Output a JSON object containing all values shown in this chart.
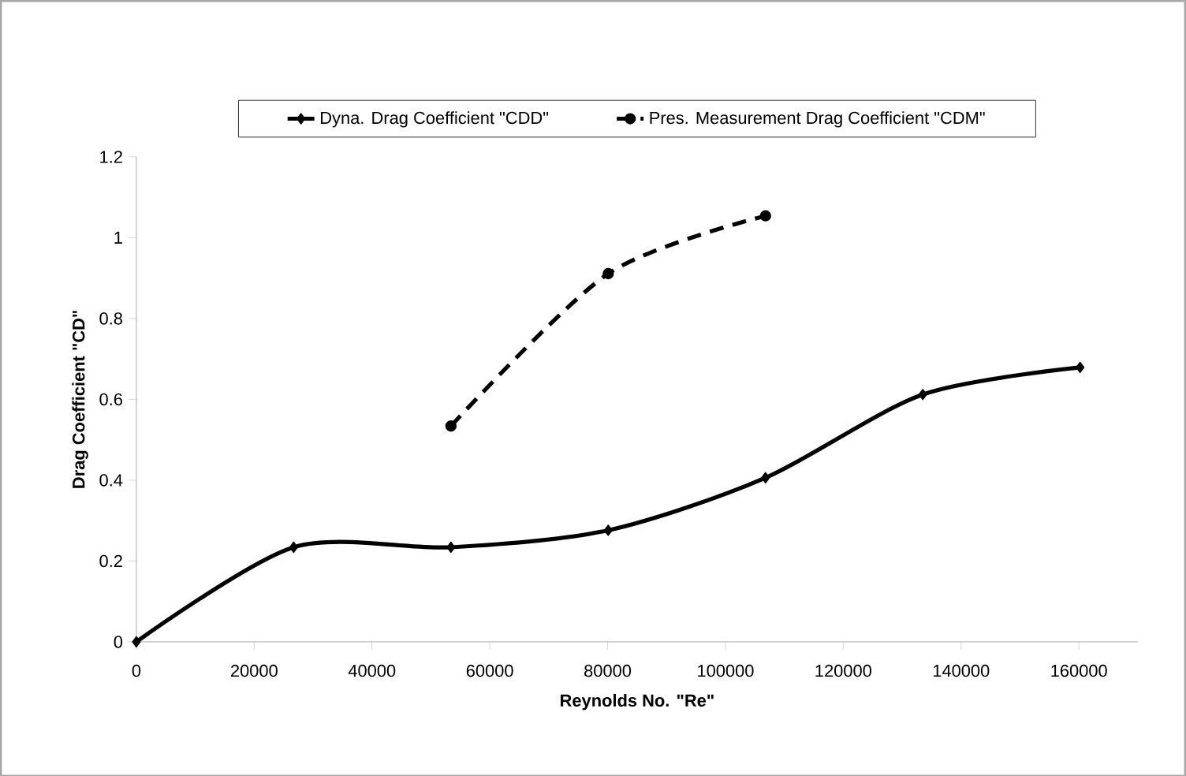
{
  "chart_data": {
    "type": "line",
    "xlabel": "Reynolds No. \"Re\"",
    "ylabel": "Drag Coefficient \"CD\"",
    "xlim": [
      0,
      170000
    ],
    "xticks": [
      0,
      20000,
      40000,
      60000,
      80000,
      100000,
      120000,
      140000,
      160000
    ],
    "ylim": [
      0,
      1.2
    ],
    "yticks": [
      0,
      0.2,
      0.4,
      0.6,
      0.8,
      1,
      1.2
    ],
    "legend": "top",
    "grid": false,
    "series": [
      {
        "name": "Dyna. Drag Coefficient \"CDD\"",
        "color": "#000000",
        "marker": "diamond",
        "line_style": "solid",
        "x": [
          0,
          26700,
          53400,
          80100,
          106800,
          133500,
          160200
        ],
        "values": [
          0,
          0.234,
          0.234,
          0.276,
          0.406,
          0.612,
          0.679
        ]
      },
      {
        "name": "Pres. Measurement Drag Coefficient \"CDM\"",
        "color": "#000000",
        "marker": "circle",
        "line_style": "dashed",
        "x": [
          53400,
          80100,
          106800
        ],
        "values": [
          0.534,
          0.911,
          1.054
        ]
      }
    ]
  }
}
